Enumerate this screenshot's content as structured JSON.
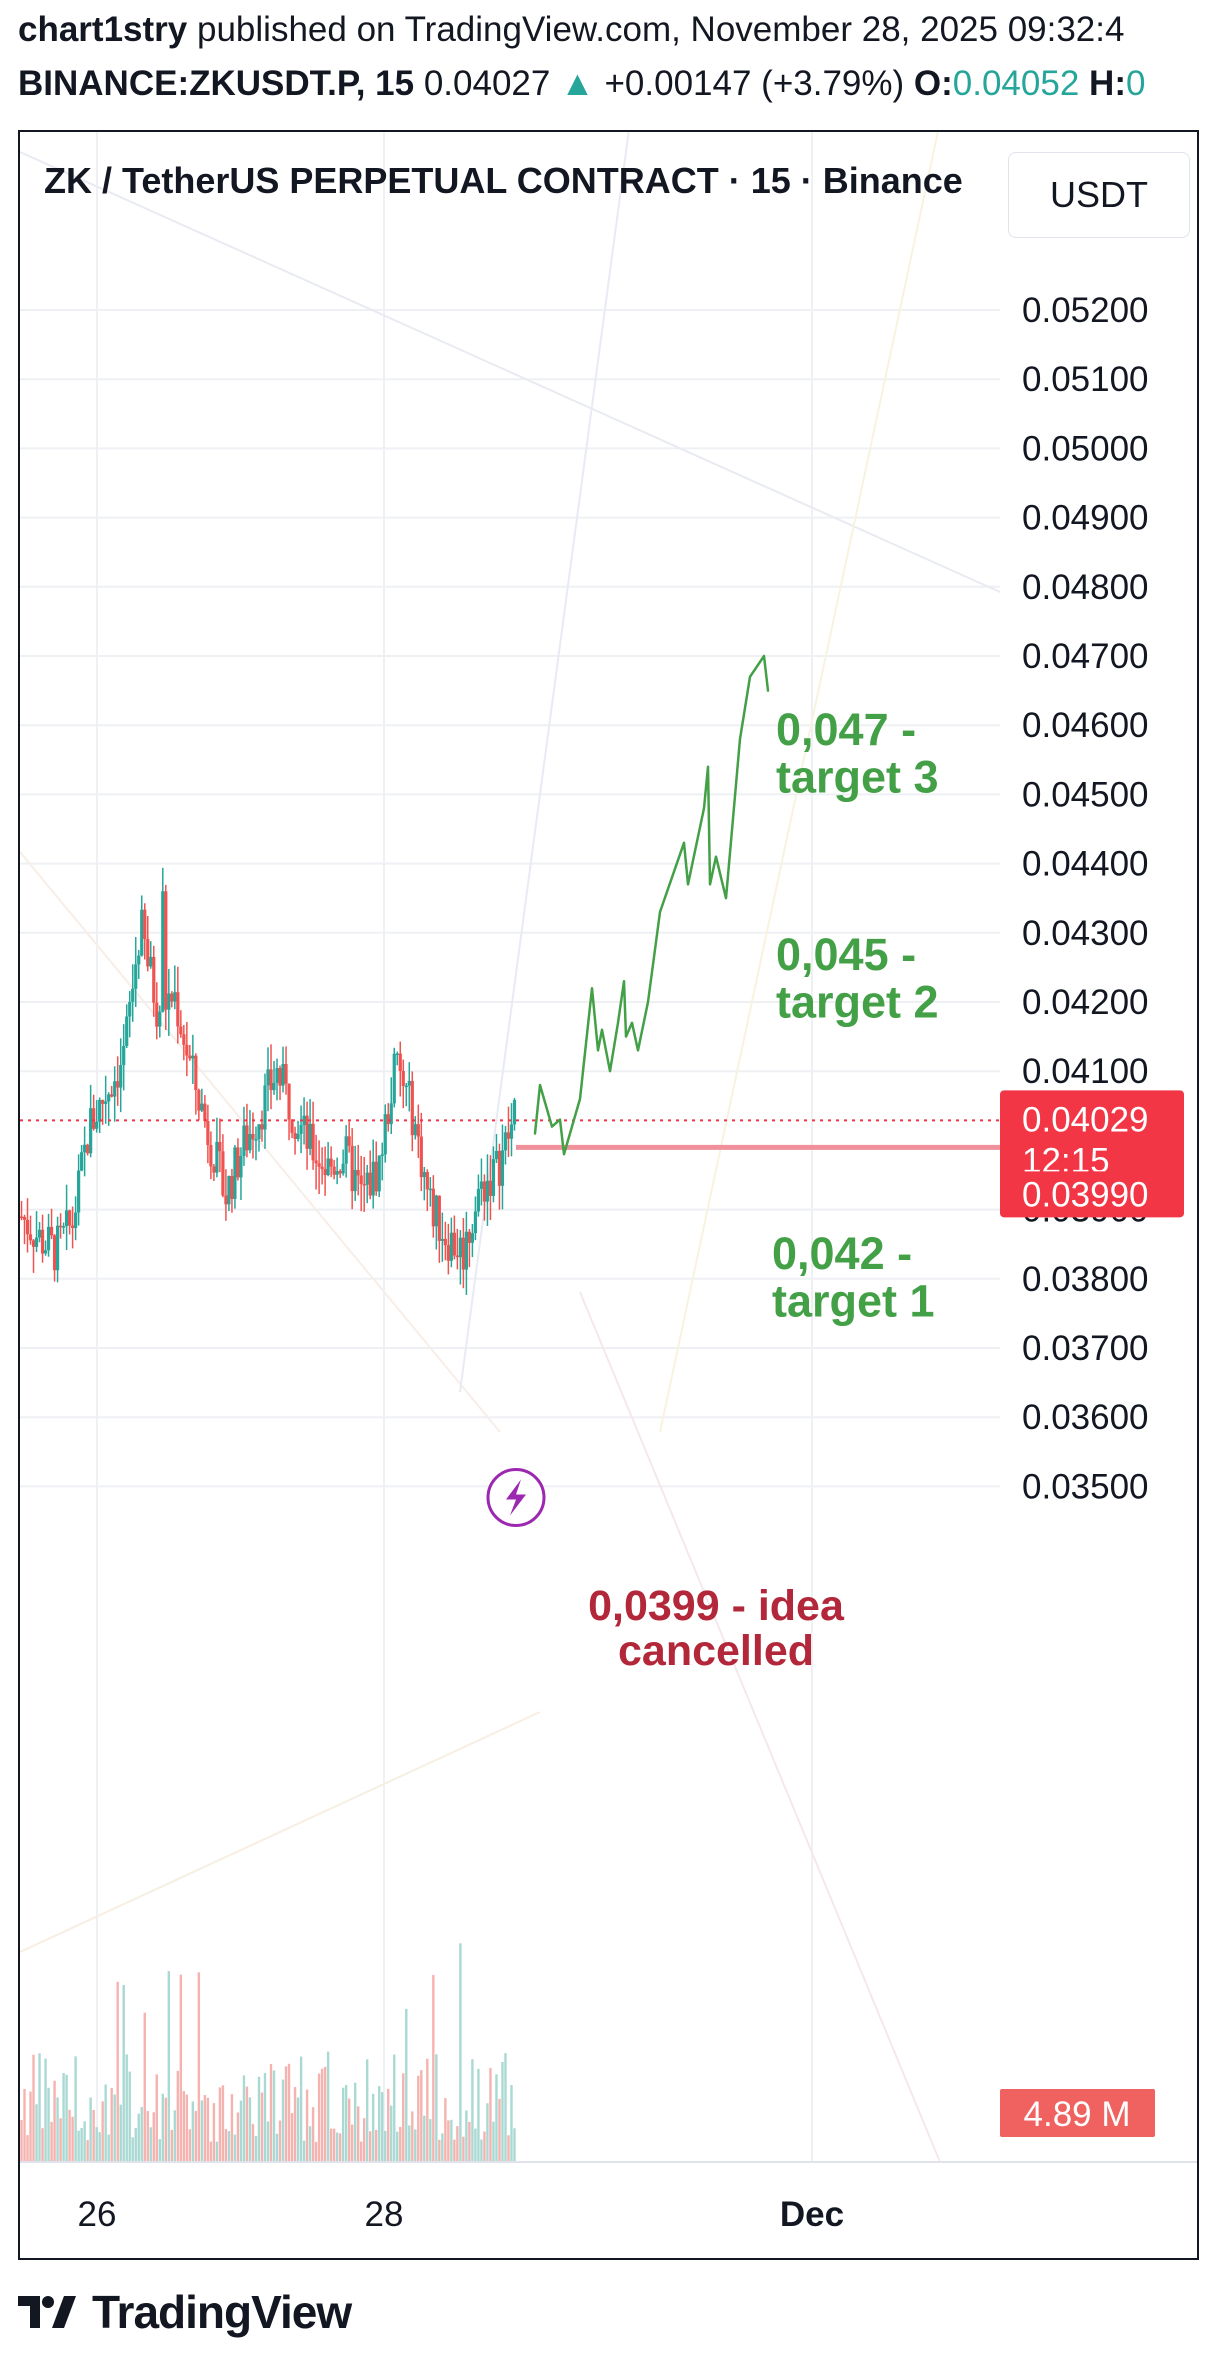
{
  "header": {
    "user": "chart1stry",
    "published_text": "published on TradingView.com, November 28, 2025 09:32:4",
    "symbol": "BINANCE:ZKUSDT.P, 15",
    "price": "0.04027",
    "change": "+0.00147 (+3.79%)",
    "open_label": "O:",
    "open_value": "0.04052",
    "high_label": "H:",
    "high_value": "0"
  },
  "chart": {
    "title": "ZK / TetherUS PERPETUAL CONTRACT · 15 · Binance",
    "currency": "USDT",
    "current_price_label": "0.04029",
    "countdown": "12:15",
    "stop_price_label": "0.03990",
    "volume_label": "4.89 M",
    "colors": {
      "up": "#26a69a",
      "down": "#ef5350",
      "current": "#f23645",
      "projection": "#43a047",
      "stop_line": "#f0909a",
      "stop_text": "#b2283a"
    }
  },
  "annotations": {
    "target3": [
      "0,047 -",
      "target 3"
    ],
    "target2": [
      "0,045 -",
      "target 2"
    ],
    "target1": [
      "0,042 -",
      "target 1"
    ],
    "stop": [
      "0,0399 - idea",
      "cancelled"
    ]
  },
  "chart_data": {
    "type": "candlestick",
    "symbol": "BINANCE:ZKUSDT.P",
    "interval": "15",
    "y_ticks": [
      "0.05200",
      "0.05100",
      "0.05000",
      "0.04900",
      "0.04800",
      "0.04700",
      "0.04600",
      "0.04500",
      "0.04400",
      "0.04300",
      "0.04200",
      "0.04100",
      "0.03900",
      "0.03800",
      "0.03700",
      "0.03600",
      "0.03500"
    ],
    "x_ticks": [
      "26",
      "28",
      "Dec"
    ],
    "ylim": [
      0.0345,
      0.0536
    ],
    "price_path": [
      [
        "11-25 00:00",
        0.0389
      ],
      [
        "11-25 06:00",
        0.0386
      ],
      [
        "11-25 10:00",
        0.0384
      ],
      [
        "11-25 14:00",
        0.0388
      ],
      [
        "11-25 18:00",
        0.0402
      ],
      [
        "11-25 21:00",
        0.0407
      ],
      [
        "11-26 00:00",
        0.0412
      ],
      [
        "11-26 03:00",
        0.0431
      ],
      [
        "11-26 06:00",
        0.0419
      ],
      [
        "11-26 09:00",
        0.0421
      ],
      [
        "11-26 12:00",
        0.041
      ],
      [
        "11-26 15:00",
        0.0401
      ],
      [
        "11-26 18:00",
        0.0392
      ],
      [
        "11-26 21:00",
        0.0399
      ],
      [
        "11-27 00:00",
        0.0404
      ],
      [
        "11-27 03:00",
        0.041
      ],
      [
        "11-27 06:00",
        0.0404
      ],
      [
        "11-27 09:00",
        0.0399
      ],
      [
        "11-27 12:00",
        0.0396
      ],
      [
        "11-27 15:00",
        0.0398
      ],
      [
        "11-27 18:00",
        0.0392
      ],
      [
        "11-27 21:00",
        0.0396
      ],
      [
        "11-28 00:00",
        0.0411
      ],
      [
        "11-28 03:00",
        0.0404
      ],
      [
        "11-28 06:00",
        0.0391
      ],
      [
        "11-28 09:00",
        0.0386
      ],
      [
        "11-28 12:00",
        0.0384
      ],
      [
        "11-28 15:00",
        0.0393
      ],
      [
        "11-28 18:00",
        0.0396
      ],
      [
        "11-28 21:00",
        0.0403
      ]
    ],
    "price_path_extremes": {
      "high": 0.044,
      "low": 0.0377
    },
    "current_price": 0.04029,
    "stop_level": 0.0399,
    "targets": [
      0.042,
      0.045,
      0.047
    ],
    "volume_last": "4.89 M"
  }
}
